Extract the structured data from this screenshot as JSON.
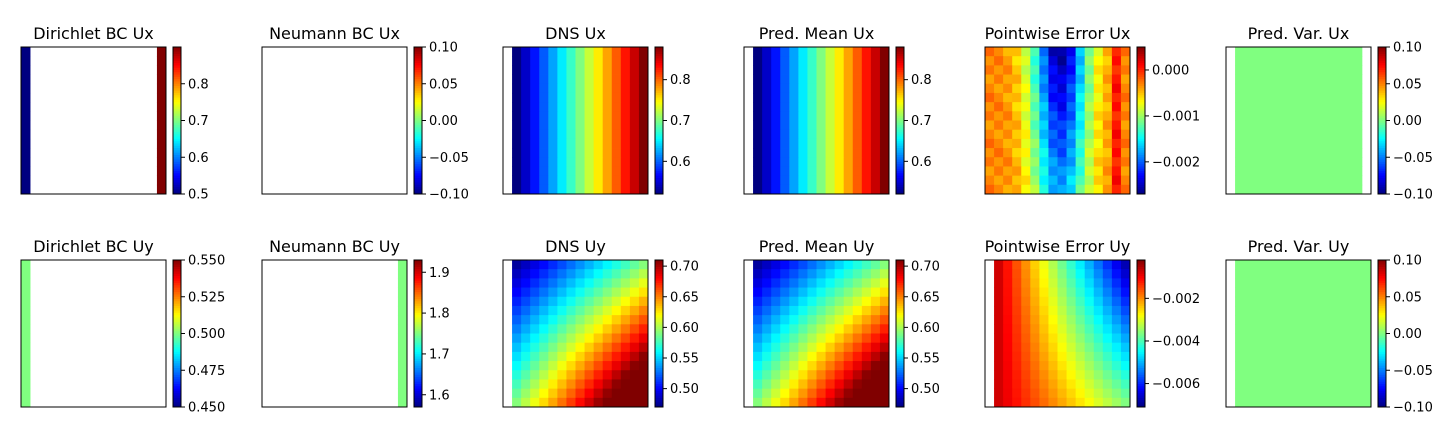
{
  "chart_data": [
    {
      "type": "heatmap",
      "title": "Dirichlet BC Ux",
      "field": "dir_ux",
      "colorbar": {
        "ticks": [
          0.5,
          0.6,
          0.7,
          0.8
        ],
        "labels": [
          "0.5",
          "0.6",
          "0.7",
          "0.8"
        ],
        "range": [
          0.5,
          0.9
        ]
      },
      "cells": {
        "left_boundary": 0.5,
        "right_boundary": 0.9,
        "interior": "blank"
      }
    },
    {
      "type": "heatmap",
      "title": "Neumann BC Ux",
      "field": "blank",
      "colorbar": {
        "ticks": [
          -0.1,
          -0.05,
          0,
          0.05,
          0.1
        ],
        "labels": [
          "−0.10",
          "−0.05",
          "0.00",
          "0.05",
          "0.10"
        ],
        "range": [
          -0.1,
          0.1
        ]
      },
      "cells": {
        "interior": "blank"
      }
    },
    {
      "type": "heatmap",
      "title": "DNS Ux",
      "field": "dns_ux",
      "colorbar": {
        "ticks": [
          0.6,
          0.7,
          0.8
        ],
        "labels": [
          "0.6",
          "0.7",
          "0.8"
        ],
        "range": [
          0.52,
          0.88
        ]
      },
      "cells": {
        "pattern": "increasing left to right",
        "min": 0.52,
        "max": 0.88,
        "left_column": "blank"
      }
    },
    {
      "type": "heatmap",
      "title": "Pred. Mean Ux",
      "field": "dns_ux",
      "colorbar": {
        "ticks": [
          0.6,
          0.7,
          0.8
        ],
        "labels": [
          "0.6",
          "0.7",
          "0.8"
        ],
        "range": [
          0.52,
          0.88
        ]
      },
      "cells": {
        "pattern": "increasing left to right",
        "min": 0.52,
        "max": 0.88,
        "left_column": "blank"
      }
    },
    {
      "type": "heatmap",
      "title": "Pointwise Error Ux",
      "field": "err_ux",
      "colorbar": {
        "ticks": [
          -0.002,
          -0.001,
          0
        ],
        "labels": [
          "−0.002",
          "−0.001",
          "0.000"
        ],
        "range": [
          -0.0027,
          0.0005
        ]
      },
      "cells": {
        "pattern": "near zero at edges, most negative in upper center",
        "min": -0.0027,
        "max": 0.0005
      }
    },
    {
      "type": "heatmap",
      "title": "Pred. Var. Ux",
      "field": "uniform_mid",
      "colorbar": {
        "ticks": [
          -0.1,
          -0.05,
          0,
          0.05,
          0.1
        ],
        "labels": [
          "−0.10",
          "−0.05",
          "0.00",
          "0.05",
          "0.10"
        ],
        "range": [
          -0.1,
          0.1
        ]
      },
      "cells": {
        "value": 0,
        "left_column": "blank",
        "right_column": "blank"
      }
    },
    {
      "type": "heatmap",
      "title": "Dirichlet BC Uy",
      "field": "dir_uy",
      "colorbar": {
        "ticks": [
          0.45,
          0.475,
          0.5,
          0.525,
          0.55
        ],
        "labels": [
          "0.450",
          "0.475",
          "0.500",
          "0.525",
          "0.550"
        ],
        "range": [
          0.45,
          0.55
        ]
      },
      "cells": {
        "left_boundary": 0.5,
        "interior": "blank"
      }
    },
    {
      "type": "heatmap",
      "title": "Neumann BC Uy",
      "field": "neu_uy",
      "colorbar": {
        "ticks": [
          1.6,
          1.7,
          1.8,
          1.9
        ],
        "labels": [
          "1.6",
          "1.7",
          "1.8",
          "1.9"
        ],
        "range": [
          1.57,
          1.93
        ]
      },
      "cells": {
        "right_boundary": 1.75,
        "interior": "blank"
      }
    },
    {
      "type": "heatmap",
      "title": "DNS Uy",
      "field": "dns_uy",
      "colorbar": {
        "ticks": [
          0.5,
          0.55,
          0.6,
          0.65,
          0.7
        ],
        "labels": [
          "0.50",
          "0.55",
          "0.60",
          "0.65",
          "0.70"
        ],
        "range": [
          0.47,
          0.71
        ]
      },
      "cells": {
        "pattern": "diagonal gradient, low top-left, high bottom-right",
        "min": 0.47,
        "max": 0.71,
        "left_column": "blank"
      }
    },
    {
      "type": "heatmap",
      "title": "Pred. Mean Uy",
      "field": "dns_uy",
      "colorbar": {
        "ticks": [
          0.5,
          0.55,
          0.6,
          0.65,
          0.7
        ],
        "labels": [
          "0.50",
          "0.55",
          "0.60",
          "0.65",
          "0.70"
        ],
        "range": [
          0.47,
          0.71
        ]
      },
      "cells": {
        "pattern": "diagonal gradient, low top-left, high bottom-right",
        "min": 0.47,
        "max": 0.71,
        "left_column": "blank"
      }
    },
    {
      "type": "heatmap",
      "title": "Pointwise Error Uy",
      "field": "err_uy",
      "colorbar": {
        "ticks": [
          -0.006,
          -0.004,
          -0.002
        ],
        "labels": [
          "−0.006",
          "−0.004",
          "−0.002"
        ],
        "range": [
          -0.0071,
          -0.0002
        ]
      },
      "cells": {
        "pattern": "near zero on left, most negative at top-right",
        "min": -0.0071,
        "max": -0.0002,
        "left_column": "blank"
      }
    },
    {
      "type": "heatmap",
      "title": "Pred. Var. Uy",
      "field": "uniform_mid",
      "colorbar": {
        "ticks": [
          -0.1,
          -0.05,
          0,
          0.05,
          0.1
        ],
        "labels": [
          "−0.10",
          "−0.05",
          "0.00",
          "0.05",
          "0.10"
        ],
        "range": [
          -0.1,
          0.1
        ]
      },
      "cells": {
        "value": 0,
        "left_column": "blank"
      }
    }
  ],
  "colormap": "jet",
  "grid": {
    "nx": 16,
    "ny": 16
  }
}
